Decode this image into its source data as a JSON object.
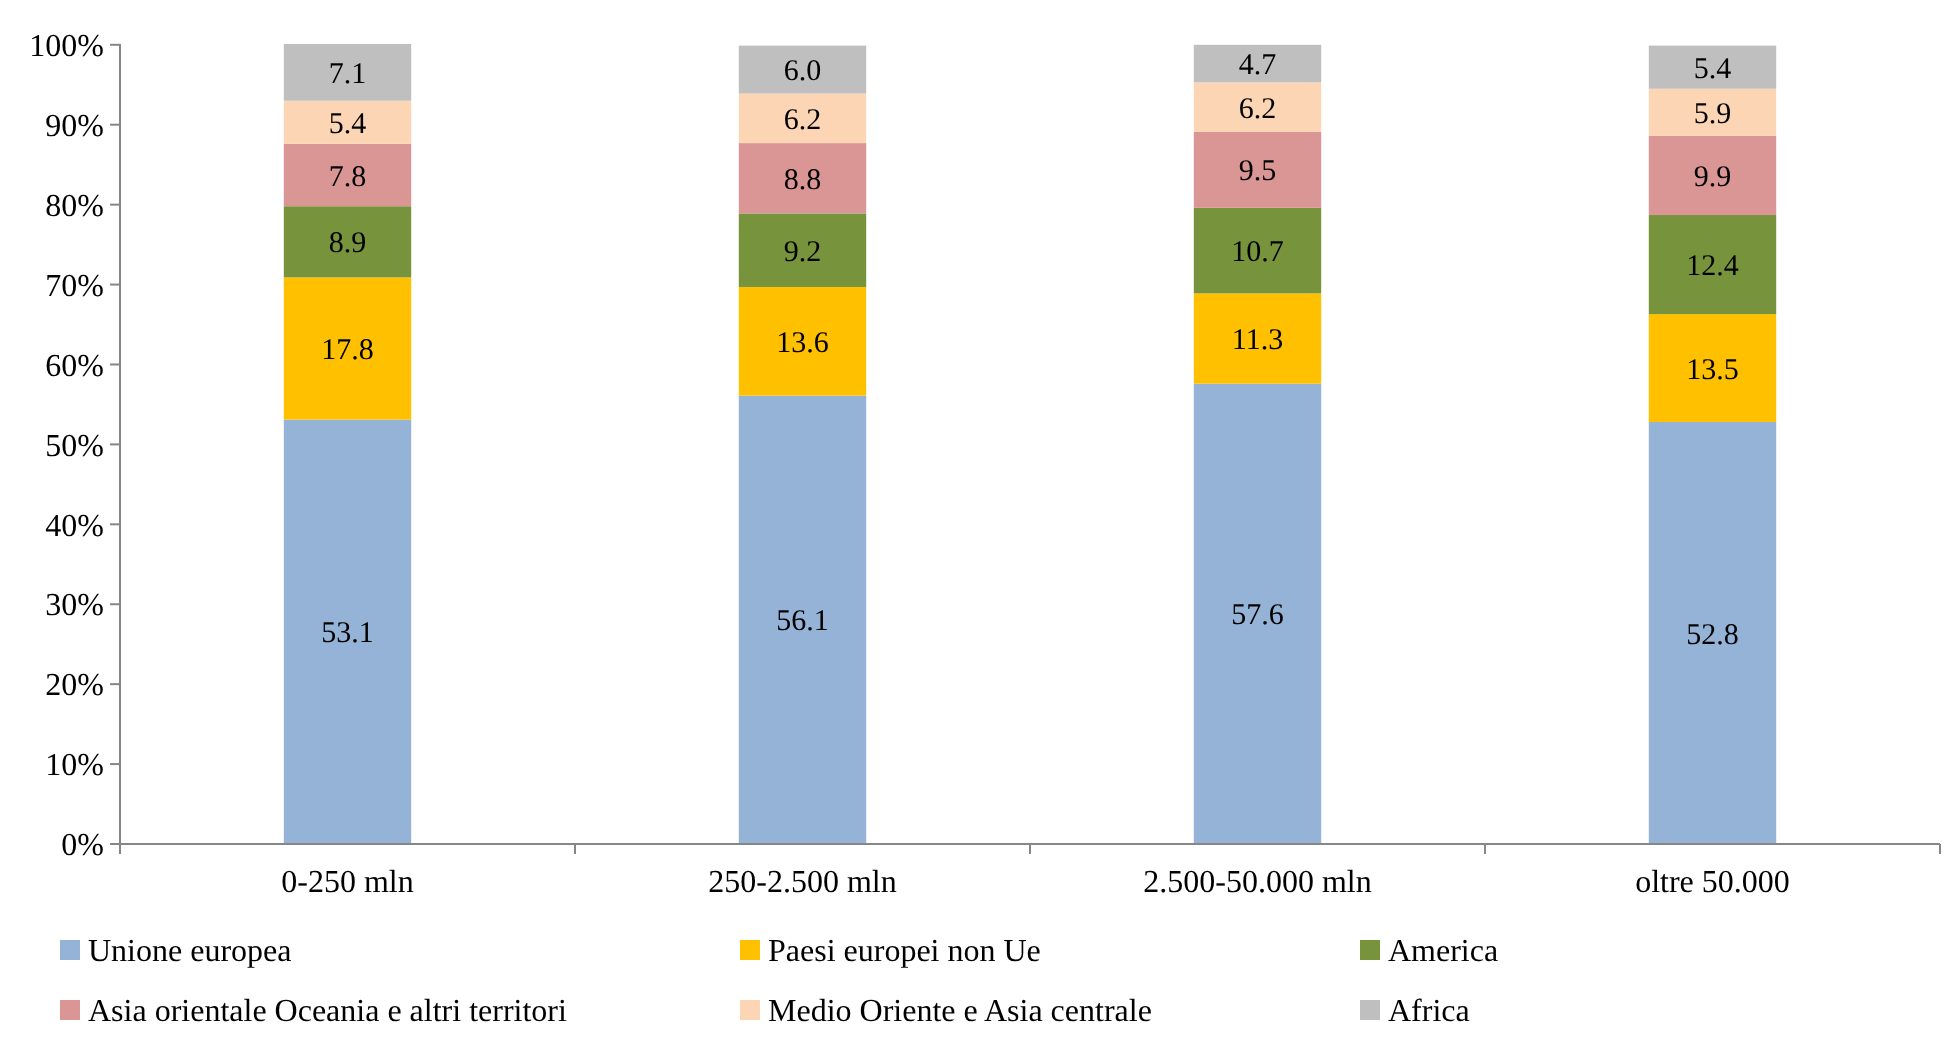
{
  "chart_data": {
    "type": "bar",
    "stacked": true,
    "categories": [
      "0-250 mln",
      "250-2.500 mln",
      "2.500-50.000 mln",
      "oltre 50.000"
    ],
    "series": [
      {
        "name": "Unione europea",
        "color": "#95b3d7",
        "values": [
          53.1,
          56.1,
          57.6,
          52.8
        ],
        "value_labels": [
          "53.1",
          "56.1",
          "57.6",
          "52.8"
        ]
      },
      {
        "name": "Paesi europei non Ue",
        "color": "#ffc000",
        "values": [
          17.8,
          13.6,
          11.3,
          13.5
        ],
        "value_labels": [
          "17.8",
          "13.6",
          "11.3",
          "13.5"
        ]
      },
      {
        "name": "America",
        "color": "#77933c",
        "values": [
          8.9,
          9.2,
          10.7,
          12.4
        ],
        "value_labels": [
          "8.9",
          "9.2",
          "10.7",
          "12.4"
        ]
      },
      {
        "name": "Asia orientale Oceania e altri territori",
        "color": "#da9694",
        "values": [
          7.8,
          8.8,
          9.5,
          9.9
        ],
        "value_labels": [
          "7.8",
          "8.8",
          "9.5",
          "9.9"
        ]
      },
      {
        "name": "Medio Oriente e Asia centrale",
        "color": "#fcd5b5",
        "values": [
          5.4,
          6.2,
          6.2,
          5.9
        ],
        "value_labels": [
          "5.4",
          "6.2",
          "6.2",
          "5.9"
        ]
      },
      {
        "name": "Africa",
        "color": "#bfbfbf",
        "values": [
          7.1,
          6.0,
          4.7,
          5.4
        ],
        "value_labels": [
          "7.1",
          "6.0",
          "4.7",
          "5.4"
        ]
      }
    ],
    "ylim": [
      0,
      100.1
    ],
    "yticks": [
      {
        "value": 0,
        "label": "0%"
      },
      {
        "value": 10,
        "label": "10%"
      },
      {
        "value": 20,
        "label": "20%"
      },
      {
        "value": 30,
        "label": "30%"
      },
      {
        "value": 40,
        "label": "40%"
      },
      {
        "value": 50,
        "label": "50%"
      },
      {
        "value": 60,
        "label": "60%"
      },
      {
        "value": 70,
        "label": "70%"
      },
      {
        "value": 80,
        "label": "80%"
      },
      {
        "value": 90,
        "label": "90%"
      },
      {
        "value": 100,
        "label": "100%"
      }
    ],
    "grid": false,
    "legend": "bottom"
  }
}
